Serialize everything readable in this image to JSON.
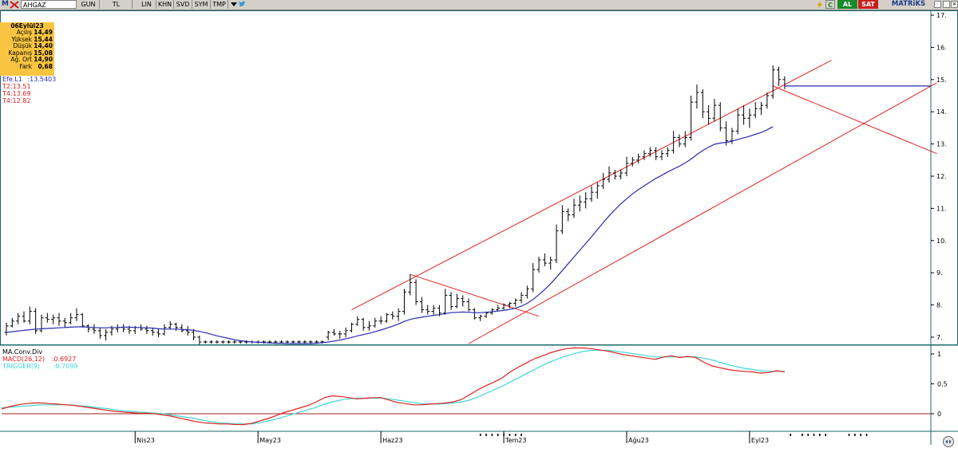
{
  "toolbar": {
    "logo_letter": "M",
    "symbol": "AHGAZ",
    "buttons": [
      "GUN",
      "TL",
      "LIN",
      "KHN",
      "SVD",
      "SYM",
      "TMP"
    ],
    "right_buttons": [
      {
        "label": "C",
        "bg": "#d4d0c8",
        "color": "#000000"
      },
      {
        "label": "AL",
        "bg": "#1a8a2a",
        "color": "#ffffff"
      },
      {
        "label": "SAT",
        "bg": "#c81e1e",
        "color": "#ffffff"
      }
    ],
    "brand": "MATRiKS"
  },
  "info": {
    "date": "06Eylül23",
    "rows": [
      {
        "label": "Açılış",
        "value": "14,49"
      },
      {
        "label": "Yüksek",
        "value": "15,44"
      },
      {
        "label": "Düşük",
        "value": "14,40"
      },
      {
        "label": "Kapanış",
        "value": "15,08"
      },
      {
        "label": "Ağ. Ort",
        "value": "14,90"
      },
      {
        "label": "Fark",
        "value": "0,68"
      }
    ]
  },
  "price_legend": {
    "ma": {
      "label": "Efe.L1",
      "value": ":13.5403",
      "color": "#2a2ab0"
    },
    "levels": [
      {
        "label": "T2:13.51",
        "color": "#e02020"
      },
      {
        "label": "T4:13.69",
        "color": "#e02020"
      },
      {
        "label": "T4:12.82",
        "color": "#e02020"
      }
    ]
  },
  "macd_legend": {
    "title": "MA.Conv.Div",
    "macd": {
      "label": "MACD(26,12)",
      "value": ":0.6927",
      "color": "#e02020"
    },
    "trigger": {
      "label": "TRIGGER(9)",
      "value": ":0.7099",
      "color": "#3cd6d6"
    }
  },
  "colors": {
    "bars": "#000000",
    "ma": "#2a2ab0",
    "trend": "#e02020",
    "macd": "#e02020",
    "trigger": "#3cd6d6",
    "zero_line": "#a02020",
    "background": "#ffffff",
    "border": "#1a6a6a"
  },
  "chart_data": [
    {
      "type": "ohlc",
      "symbol": "AHGAZ",
      "y_ticks": [
        7,
        8,
        9,
        10,
        11,
        12,
        13,
        14,
        15,
        16,
        17
      ],
      "ylim": [
        6.8,
        17.1
      ],
      "x_labels": [
        "Nis23",
        "May23",
        "Haz23",
        "Tem23",
        "Ağu23",
        "Eyl23"
      ],
      "x_label_index": [
        22,
        43,
        64,
        85,
        106,
        127
      ],
      "bars": [
        [
          7.15,
          7.45,
          7.05,
          7.35
        ],
        [
          7.35,
          7.6,
          7.3,
          7.5
        ],
        [
          7.5,
          7.75,
          7.4,
          7.65
        ],
        [
          7.65,
          7.8,
          7.45,
          7.5
        ],
        [
          7.5,
          7.95,
          7.4,
          7.8
        ],
        [
          7.8,
          7.9,
          7.1,
          7.2
        ],
        [
          7.2,
          7.7,
          7.15,
          7.6
        ],
        [
          7.6,
          7.75,
          7.45,
          7.55
        ],
        [
          7.55,
          7.7,
          7.4,
          7.6
        ],
        [
          7.6,
          7.75,
          7.35,
          7.5
        ],
        [
          7.5,
          7.6,
          7.3,
          7.45
        ],
        [
          7.45,
          7.75,
          7.4,
          7.6
        ],
        [
          7.6,
          7.9,
          7.5,
          7.7
        ],
        [
          7.7,
          7.75,
          7.3,
          7.35
        ],
        [
          7.35,
          7.4,
          7.15,
          7.25
        ],
        [
          7.25,
          7.4,
          7.1,
          7.2
        ],
        [
          7.2,
          7.3,
          6.95,
          7.05
        ],
        [
          7.05,
          7.25,
          6.9,
          7.15
        ],
        [
          7.15,
          7.35,
          7.05,
          7.25
        ],
        [
          7.25,
          7.4,
          7.15,
          7.3
        ],
        [
          7.3,
          7.4,
          7.15,
          7.25
        ],
        [
          7.25,
          7.35,
          7.1,
          7.2
        ],
        [
          7.2,
          7.35,
          7.1,
          7.3
        ],
        [
          7.3,
          7.4,
          7.2,
          7.25
        ],
        [
          7.25,
          7.35,
          7.1,
          7.2
        ],
        [
          7.2,
          7.3,
          7.05,
          7.15
        ],
        [
          7.15,
          7.25,
          7.0,
          7.1
        ],
        [
          7.1,
          7.4,
          7.05,
          7.3
        ],
        [
          7.3,
          7.5,
          7.25,
          7.4
        ],
        [
          7.4,
          7.45,
          7.2,
          7.3
        ],
        [
          7.3,
          7.4,
          7.15,
          7.2
        ],
        [
          7.2,
          7.35,
          7.05,
          7.15
        ],
        [
          7.15,
          7.25,
          6.9,
          7.0
        ],
        [
          7.0,
          7.05,
          6.75,
          6.85
        ],
        [
          6.85,
          6.9,
          6.8,
          6.85
        ],
        [
          6.85,
          6.9,
          6.8,
          6.85
        ],
        [
          6.85,
          6.9,
          6.8,
          6.85
        ],
        [
          6.85,
          6.9,
          6.8,
          6.85
        ],
        [
          6.85,
          6.9,
          6.8,
          6.85
        ],
        [
          6.85,
          6.9,
          6.8,
          6.85
        ],
        [
          6.85,
          6.9,
          6.8,
          6.85
        ],
        [
          6.85,
          6.9,
          6.8,
          6.85
        ],
        [
          6.85,
          6.9,
          6.8,
          6.85
        ],
        [
          6.85,
          6.9,
          6.8,
          6.85
        ],
        [
          6.85,
          6.9,
          6.8,
          6.85
        ],
        [
          6.85,
          6.9,
          6.8,
          6.85
        ],
        [
          6.85,
          6.9,
          6.8,
          6.85
        ],
        [
          6.85,
          6.9,
          6.8,
          6.85
        ],
        [
          6.85,
          6.9,
          6.8,
          6.85
        ],
        [
          6.85,
          6.9,
          6.8,
          6.85
        ],
        [
          6.85,
          6.9,
          6.8,
          6.85
        ],
        [
          6.85,
          6.9,
          6.8,
          6.85
        ],
        [
          6.85,
          6.9,
          6.8,
          6.85
        ],
        [
          6.85,
          6.9,
          6.8,
          6.85
        ],
        [
          6.85,
          6.9,
          6.8,
          6.85
        ],
        [
          7.0,
          7.2,
          6.9,
          7.15
        ],
        [
          7.15,
          7.25,
          7.05,
          7.1
        ],
        [
          7.1,
          7.2,
          6.95,
          7.1
        ],
        [
          7.1,
          7.3,
          7.0,
          7.2
        ],
        [
          7.2,
          7.45,
          7.15,
          7.4
        ],
        [
          7.4,
          7.65,
          7.35,
          7.55
        ],
        [
          7.55,
          7.6,
          7.2,
          7.3
        ],
        [
          7.3,
          7.5,
          7.2,
          7.35
        ],
        [
          7.35,
          7.6,
          7.3,
          7.5
        ],
        [
          7.5,
          7.65,
          7.4,
          7.5
        ],
        [
          7.5,
          7.75,
          7.45,
          7.7
        ],
        [
          7.7,
          7.8,
          7.55,
          7.65
        ],
        [
          7.65,
          7.9,
          7.5,
          7.8
        ],
        [
          7.8,
          8.5,
          7.7,
          8.4
        ],
        [
          8.4,
          8.95,
          8.3,
          8.7
        ],
        [
          8.7,
          8.8,
          8.0,
          8.1
        ],
        [
          8.1,
          8.25,
          7.75,
          7.85
        ],
        [
          7.85,
          8.0,
          7.7,
          7.8
        ],
        [
          7.8,
          8.0,
          7.7,
          7.9
        ],
        [
          7.9,
          8.0,
          7.65,
          7.75
        ],
        [
          7.75,
          8.5,
          7.7,
          8.3
        ],
        [
          8.3,
          8.4,
          7.85,
          7.95
        ],
        [
          7.95,
          8.35,
          7.9,
          8.2
        ],
        [
          8.2,
          8.3,
          7.95,
          8.1
        ],
        [
          8.1,
          8.2,
          7.8,
          7.85
        ],
        [
          7.85,
          7.9,
          7.55,
          7.6
        ],
        [
          7.6,
          7.7,
          7.5,
          7.65
        ],
        [
          7.65,
          7.8,
          7.6,
          7.75
        ],
        [
          7.75,
          7.9,
          7.7,
          7.85
        ],
        [
          7.85,
          8.0,
          7.8,
          7.9
        ],
        [
          7.9,
          8.05,
          7.85,
          8.0
        ],
        [
          8.0,
          8.1,
          7.9,
          8.05
        ],
        [
          8.05,
          8.2,
          7.95,
          8.15
        ],
        [
          8.15,
          8.4,
          8.05,
          8.3
        ],
        [
          8.3,
          8.6,
          8.2,
          8.5
        ],
        [
          8.5,
          9.3,
          8.4,
          9.1
        ],
        [
          9.1,
          9.5,
          9.0,
          9.4
        ],
        [
          9.4,
          9.6,
          9.2,
          9.3
        ],
        [
          9.3,
          9.5,
          9.1,
          9.4
        ],
        [
          9.4,
          10.5,
          9.3,
          10.3
        ],
        [
          10.3,
          11.1,
          10.2,
          10.9
        ],
        [
          10.9,
          11.0,
          10.6,
          10.8
        ],
        [
          10.8,
          11.3,
          10.7,
          11.1
        ],
        [
          11.1,
          11.4,
          10.9,
          11.2
        ],
        [
          11.2,
          11.5,
          11.0,
          11.3
        ],
        [
          11.3,
          11.7,
          11.2,
          11.5
        ],
        [
          11.5,
          11.8,
          11.3,
          11.7
        ],
        [
          11.7,
          12.1,
          11.6,
          11.9
        ],
        [
          11.9,
          12.3,
          11.8,
          12.1
        ],
        [
          12.1,
          12.2,
          11.9,
          12.0
        ],
        [
          12.0,
          12.2,
          11.9,
          12.1
        ],
        [
          12.1,
          12.6,
          12.0,
          12.4
        ],
        [
          12.4,
          12.6,
          12.3,
          12.5
        ],
        [
          12.5,
          12.7,
          12.4,
          12.6
        ],
        [
          12.6,
          12.8,
          12.5,
          12.7
        ],
        [
          12.7,
          12.9,
          12.6,
          12.8
        ],
        [
          12.8,
          12.9,
          12.5,
          12.6
        ],
        [
          12.6,
          12.8,
          12.5,
          12.7
        ],
        [
          12.7,
          12.9,
          12.6,
          12.8
        ],
        [
          12.8,
          13.4,
          12.7,
          13.2
        ],
        [
          13.2,
          13.3,
          12.9,
          13.0
        ],
        [
          13.0,
          13.4,
          12.9,
          13.2
        ],
        [
          13.2,
          14.5,
          13.1,
          14.3
        ],
        [
          14.3,
          14.85,
          14.1,
          14.6
        ],
        [
          14.6,
          14.7,
          13.8,
          14.0
        ],
        [
          14.0,
          14.2,
          13.6,
          13.8
        ],
        [
          13.8,
          14.4,
          13.7,
          14.2
        ],
        [
          14.2,
          14.3,
          13.4,
          13.5
        ],
        [
          13.5,
          13.7,
          12.95,
          13.1
        ],
        [
          13.1,
          13.5,
          13.0,
          13.4
        ],
        [
          13.4,
          14.1,
          13.3,
          13.9
        ],
        [
          13.9,
          14.2,
          13.6,
          13.8
        ],
        [
          13.8,
          14.1,
          13.5,
          13.9
        ],
        [
          13.9,
          14.3,
          13.8,
          14.1
        ],
        [
          14.1,
          14.3,
          13.9,
          14.2
        ],
        [
          14.2,
          14.6,
          14.1,
          14.5
        ],
        [
          14.5,
          15.44,
          14.4,
          15.3
        ],
        [
          15.3,
          15.4,
          14.8,
          15.0
        ],
        [
          15.0,
          15.1,
          14.7,
          14.8
        ]
      ],
      "ma": [
        7.15,
        7.17,
        7.19,
        7.21,
        7.23,
        7.25,
        7.26,
        7.27,
        7.28,
        7.29,
        7.3,
        7.31,
        7.32,
        7.32,
        7.31,
        7.3,
        7.29,
        7.29,
        7.3,
        7.3,
        7.31,
        7.31,
        7.3,
        7.3,
        7.29,
        7.28,
        7.26,
        7.25,
        7.25,
        7.25,
        7.24,
        7.23,
        7.21,
        7.18,
        7.14,
        7.09,
        7.04,
        7.0,
        6.96,
        6.92,
        6.89,
        6.87,
        6.85,
        6.84,
        6.83,
        6.82,
        6.81,
        6.81,
        6.8,
        6.8,
        6.8,
        6.8,
        6.8,
        6.81,
        6.83,
        6.85,
        6.88,
        6.91,
        6.95,
        6.99,
        7.04,
        7.08,
        7.12,
        7.17,
        7.22,
        7.28,
        7.34,
        7.41,
        7.49,
        7.55,
        7.59,
        7.62,
        7.65,
        7.68,
        7.7,
        7.73,
        7.76,
        7.77,
        7.78,
        7.77,
        7.76,
        7.76,
        7.77,
        7.79,
        7.81,
        7.83,
        7.86,
        7.9,
        7.96,
        8.05,
        8.17,
        8.32,
        8.48,
        8.66,
        8.86,
        9.07,
        9.28,
        9.49,
        9.7,
        9.91,
        10.12,
        10.34,
        10.56,
        10.77,
        10.96,
        11.14,
        11.3,
        11.45,
        11.58,
        11.7,
        11.82,
        11.93,
        12.03,
        12.13,
        12.22,
        12.31,
        12.41,
        12.53,
        12.67,
        12.8,
        12.9,
        12.99,
        13.03,
        13.05,
        13.09,
        13.14,
        13.19,
        13.24,
        13.3,
        13.36,
        13.44,
        13.54
      ]
    },
    {
      "type": "line",
      "title": "MA.Conv.Div",
      "y_ticks": [
        0,
        0.5,
        1
      ],
      "y_tick_labels": [
        "0",
        "0,5",
        "1"
      ],
      "ylim": [
        -0.28,
        1.12
      ],
      "series": [
        {
          "name": "MACD(26,12)",
          "values": [
            0.08,
            0.12,
            0.15,
            0.17,
            0.18,
            0.18,
            0.17,
            0.16,
            0.15,
            0.14,
            0.12,
            0.1,
            0.08,
            0.06,
            0.04,
            0.03,
            0.02,
            0.01,
            0.01,
            0.0,
            -0.02,
            -0.04,
            -0.07,
            -0.1,
            -0.13,
            -0.15,
            -0.16,
            -0.17,
            -0.17,
            -0.18,
            -0.18,
            -0.16,
            -0.12,
            -0.08,
            -0.03,
            0.02,
            0.06,
            0.1,
            0.14,
            0.2,
            0.27,
            0.3,
            0.29,
            0.27,
            0.25,
            0.26,
            0.27,
            0.27,
            0.23,
            0.19,
            0.17,
            0.15,
            0.15,
            0.16,
            0.17,
            0.18,
            0.2,
            0.24,
            0.32,
            0.4,
            0.47,
            0.53,
            0.6,
            0.7,
            0.78,
            0.85,
            0.92,
            0.97,
            1.02,
            1.06,
            1.09,
            1.1,
            1.1,
            1.09,
            1.07,
            1.05,
            1.02,
            0.99,
            0.97,
            0.95,
            0.93,
            0.91,
            0.95,
            0.97,
            0.94,
            0.96,
            0.94,
            0.86,
            0.8,
            0.77,
            0.74,
            0.72,
            0.71,
            0.7,
            0.68,
            0.69,
            0.72,
            0.7
          ]
        },
        {
          "name": "TRIGGER(9)",
          "values": [
            0.1,
            0.11,
            0.12,
            0.13,
            0.14,
            0.15,
            0.15,
            0.15,
            0.15,
            0.14,
            0.13,
            0.12,
            0.1,
            0.09,
            0.07,
            0.05,
            0.04,
            0.03,
            0.02,
            0.01,
            0.0,
            -0.02,
            -0.04,
            -0.06,
            -0.08,
            -0.11,
            -0.13,
            -0.15,
            -0.16,
            -0.17,
            -0.17,
            -0.17,
            -0.15,
            -0.12,
            -0.09,
            -0.05,
            -0.01,
            0.03,
            0.07,
            0.11,
            0.16,
            0.2,
            0.23,
            0.25,
            0.26,
            0.26,
            0.26,
            0.26,
            0.25,
            0.23,
            0.21,
            0.19,
            0.17,
            0.17,
            0.16,
            0.17,
            0.18,
            0.2,
            0.23,
            0.28,
            0.34,
            0.4,
            0.46,
            0.53,
            0.6,
            0.67,
            0.74,
            0.81,
            0.87,
            0.92,
            0.97,
            1.01,
            1.04,
            1.06,
            1.06,
            1.06,
            1.05,
            1.03,
            1.01,
            0.99,
            0.97,
            0.95,
            0.95,
            0.95,
            0.95,
            0.95,
            0.95,
            0.93,
            0.9,
            0.86,
            0.82,
            0.79,
            0.76,
            0.74,
            0.72,
            0.71,
            0.71,
            0.71
          ]
        }
      ]
    }
  ]
}
